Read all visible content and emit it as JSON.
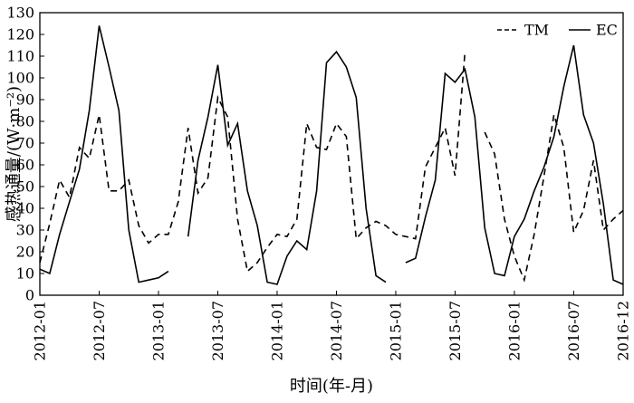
{
  "chart_data": {
    "type": "line",
    "xlabel": "时间(年-月)",
    "ylabel": "感热通量/(W·m⁻²)",
    "ylim": [
      0,
      130
    ],
    "yticks": [
      0,
      10,
      20,
      30,
      40,
      50,
      60,
      70,
      80,
      90,
      100,
      110,
      120,
      130
    ],
    "xticks": [
      "2012-01",
      "2012-07",
      "2013-01",
      "2013-07",
      "2014-01",
      "2014-07",
      "2015-01",
      "2015-07",
      "2016-01",
      "2016-07",
      "2016-12"
    ],
    "x_unit": "month index (0 = 2012-01, 59 = 2016-12)",
    "legend_position": "top-right",
    "series": [
      {
        "name": "TM",
        "style": "dashed",
        "color": "#000000",
        "segments": [
          [
            [
              0,
              15
            ],
            [
              1,
              33
            ],
            [
              2,
              53
            ],
            [
              3,
              45
            ],
            [
              4,
              68
            ],
            [
              5,
              63
            ],
            [
              6,
              83
            ],
            [
              7,
              48
            ],
            [
              8,
              48
            ],
            [
              9,
              53
            ],
            [
              10,
              32
            ],
            [
              11,
              24
            ],
            [
              12,
              28
            ],
            [
              13,
              28
            ],
            [
              14,
              43
            ],
            [
              15,
              77
            ],
            [
              16,
              47
            ],
            [
              17,
              54
            ],
            [
              18,
              91
            ],
            [
              19,
              82
            ],
            [
              20,
              35
            ],
            [
              21,
              11
            ],
            [
              22,
              15
            ],
            [
              23,
              22
            ],
            [
              24,
              28
            ],
            [
              25,
              27
            ],
            [
              26,
              35
            ],
            [
              27,
              79
            ],
            [
              28,
              68
            ],
            [
              29,
              67
            ],
            [
              30,
              79
            ],
            [
              31,
              73
            ],
            [
              32,
              26
            ],
            [
              33,
              31
            ],
            [
              34,
              34
            ],
            [
              35,
              32
            ],
            [
              36,
              28
            ],
            [
              37,
              27
            ],
            [
              38,
              26
            ],
            [
              39,
              59
            ],
            [
              40,
              68
            ],
            [
              41,
              77
            ],
            [
              42,
              55
            ],
            [
              43,
              112
            ]
          ],
          [
            [
              45,
              75
            ],
            [
              46,
              65
            ],
            [
              47,
              35
            ],
            [
              48,
              18
            ],
            [
              49,
              7
            ],
            [
              50,
              28
            ],
            [
              51,
              55
            ],
            [
              52,
              83
            ],
            [
              53,
              68
            ],
            [
              54,
              29
            ],
            [
              55,
              39
            ],
            [
              56,
              62
            ],
            [
              57,
              30
            ],
            [
              58,
              35
            ],
            [
              59,
              39
            ]
          ]
        ]
      },
      {
        "name": "EC",
        "style": "solid",
        "color": "#000000",
        "segments": [
          [
            [
              0,
              12
            ],
            [
              1,
              10
            ],
            [
              2,
              28
            ],
            [
              3,
              43
            ],
            [
              4,
              58
            ],
            [
              5,
              85
            ],
            [
              6,
              124
            ],
            [
              7,
              105
            ],
            [
              8,
              85
            ],
            [
              9,
              30
            ],
            [
              10,
              6
            ],
            [
              11,
              7
            ],
            [
              12,
              8
            ],
            [
              13,
              11
            ]
          ],
          [
            [
              15,
              27
            ],
            [
              16,
              62
            ],
            [
              17,
              82
            ],
            [
              18,
              106
            ],
            [
              19,
              69
            ],
            [
              20,
              79
            ],
            [
              21,
              48
            ],
            [
              22,
              32
            ],
            [
              23,
              6
            ],
            [
              24,
              5
            ],
            [
              25,
              18
            ],
            [
              26,
              25
            ],
            [
              27,
              21
            ],
            [
              28,
              48
            ],
            [
              29,
              107
            ],
            [
              30,
              112
            ],
            [
              31,
              105
            ],
            [
              32,
              91
            ],
            [
              33,
              40
            ],
            [
              34,
              9
            ],
            [
              35,
              6
            ]
          ],
          [
            [
              37,
              15
            ],
            [
              38,
              17
            ],
            [
              39,
              36
            ],
            [
              40,
              53
            ],
            [
              41,
              102
            ],
            [
              42,
              98
            ],
            [
              43,
              104
            ],
            [
              44,
              82
            ],
            [
              45,
              31
            ],
            [
              46,
              10
            ],
            [
              47,
              9
            ],
            [
              48,
              27
            ],
            [
              49,
              35
            ],
            [
              50,
              48
            ],
            [
              51,
              59
            ],
            [
              52,
              73
            ],
            [
              53,
              96
            ],
            [
              54,
              115
            ],
            [
              55,
              83
            ],
            [
              56,
              70
            ],
            [
              57,
              42
            ],
            [
              58,
              7
            ],
            [
              59,
              5
            ]
          ]
        ]
      }
    ]
  }
}
